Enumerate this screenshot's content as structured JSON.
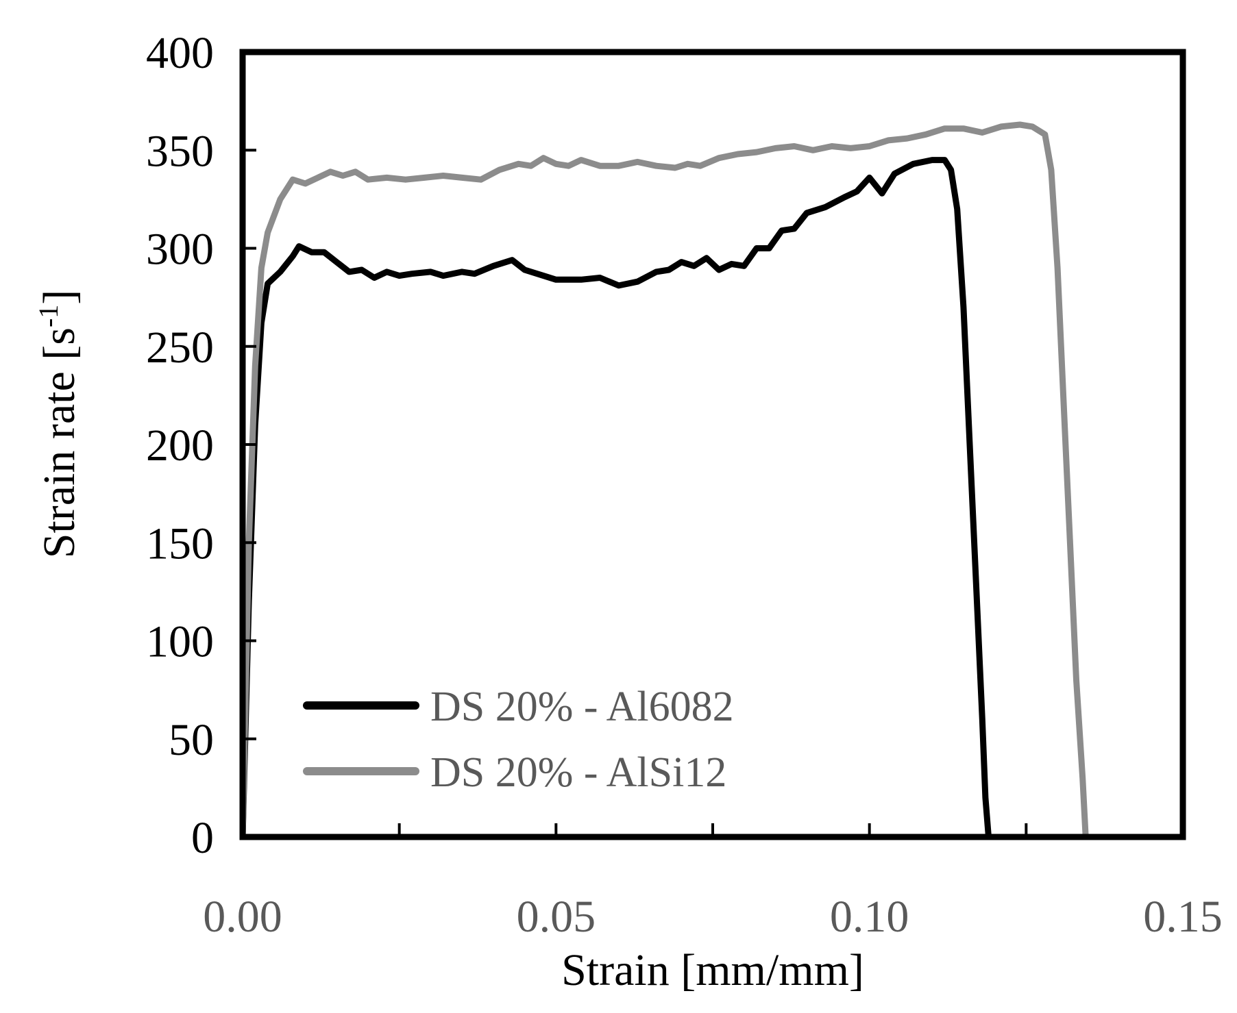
{
  "chart_data": {
    "type": "line",
    "title": "",
    "xlabel": "Strain [mm/mm]",
    "ylabel_main": "Strain rate [s",
    "ylabel_sup": "-1",
    "ylabel_close": "]",
    "xlim": [
      0,
      0.15
    ],
    "ylim": [
      0,
      400
    ],
    "x_ticks": [
      "0.00",
      "0.05",
      "0.10",
      "0.15"
    ],
    "y_ticks": [
      "0",
      "50",
      "100",
      "150",
      "200",
      "250",
      "300",
      "350",
      "400"
    ],
    "grid": false,
    "legend_position": "bottom-left",
    "series": [
      {
        "name": "DS 20% - Al6082",
        "color": "#000000",
        "points": [
          [
            0.0,
            0
          ],
          [
            0.001,
            120
          ],
          [
            0.002,
            210
          ],
          [
            0.003,
            262
          ],
          [
            0.004,
            282
          ],
          [
            0.006,
            288
          ],
          [
            0.008,
            296
          ],
          [
            0.009,
            301
          ],
          [
            0.011,
            298
          ],
          [
            0.013,
            298
          ],
          [
            0.015,
            293
          ],
          [
            0.017,
            288
          ],
          [
            0.019,
            289
          ],
          [
            0.021,
            285
          ],
          [
            0.023,
            288
          ],
          [
            0.025,
            286
          ],
          [
            0.027,
            287
          ],
          [
            0.03,
            288
          ],
          [
            0.032,
            286
          ],
          [
            0.035,
            288
          ],
          [
            0.037,
            287
          ],
          [
            0.04,
            291
          ],
          [
            0.043,
            294
          ],
          [
            0.045,
            289
          ],
          [
            0.048,
            286
          ],
          [
            0.05,
            284
          ],
          [
            0.054,
            284
          ],
          [
            0.057,
            285
          ],
          [
            0.06,
            281
          ],
          [
            0.063,
            283
          ],
          [
            0.066,
            288
          ],
          [
            0.068,
            289
          ],
          [
            0.07,
            293
          ],
          [
            0.072,
            291
          ],
          [
            0.074,
            295
          ],
          [
            0.076,
            289
          ],
          [
            0.078,
            292
          ],
          [
            0.08,
            291
          ],
          [
            0.082,
            300
          ],
          [
            0.084,
            300
          ],
          [
            0.086,
            309
          ],
          [
            0.088,
            310
          ],
          [
            0.09,
            318
          ],
          [
            0.093,
            321
          ],
          [
            0.096,
            326
          ],
          [
            0.098,
            329
          ],
          [
            0.1,
            336
          ],
          [
            0.102,
            328
          ],
          [
            0.104,
            338
          ],
          [
            0.107,
            343
          ],
          [
            0.11,
            345
          ],
          [
            0.112,
            345
          ],
          [
            0.113,
            340
          ],
          [
            0.114,
            320
          ],
          [
            0.115,
            270
          ],
          [
            0.116,
            200
          ],
          [
            0.117,
            130
          ],
          [
            0.118,
            60
          ],
          [
            0.1185,
            20
          ],
          [
            0.119,
            0
          ]
        ]
      },
      {
        "name": "DS 20% - AlSi12",
        "color": "#8c8c8c",
        "points": [
          [
            0.0,
            0
          ],
          [
            0.001,
            150
          ],
          [
            0.002,
            240
          ],
          [
            0.003,
            290
          ],
          [
            0.004,
            308
          ],
          [
            0.006,
            325
          ],
          [
            0.008,
            335
          ],
          [
            0.01,
            333
          ],
          [
            0.012,
            336
          ],
          [
            0.014,
            339
          ],
          [
            0.016,
            337
          ],
          [
            0.018,
            339
          ],
          [
            0.02,
            335
          ],
          [
            0.023,
            336
          ],
          [
            0.026,
            335
          ],
          [
            0.029,
            336
          ],
          [
            0.032,
            337
          ],
          [
            0.035,
            336
          ],
          [
            0.038,
            335
          ],
          [
            0.041,
            340
          ],
          [
            0.044,
            343
          ],
          [
            0.046,
            342
          ],
          [
            0.048,
            346
          ],
          [
            0.05,
            343
          ],
          [
            0.052,
            342
          ],
          [
            0.054,
            345
          ],
          [
            0.057,
            342
          ],
          [
            0.06,
            342
          ],
          [
            0.063,
            344
          ],
          [
            0.066,
            342
          ],
          [
            0.069,
            341
          ],
          [
            0.071,
            343
          ],
          [
            0.073,
            342
          ],
          [
            0.076,
            346
          ],
          [
            0.079,
            348
          ],
          [
            0.082,
            349
          ],
          [
            0.085,
            351
          ],
          [
            0.088,
            352
          ],
          [
            0.091,
            350
          ],
          [
            0.094,
            352
          ],
          [
            0.097,
            351
          ],
          [
            0.1,
            352
          ],
          [
            0.103,
            355
          ],
          [
            0.106,
            356
          ],
          [
            0.109,
            358
          ],
          [
            0.112,
            361
          ],
          [
            0.115,
            361
          ],
          [
            0.118,
            359
          ],
          [
            0.121,
            362
          ],
          [
            0.124,
            363
          ],
          [
            0.126,
            362
          ],
          [
            0.128,
            358
          ],
          [
            0.129,
            340
          ],
          [
            0.13,
            290
          ],
          [
            0.131,
            220
          ],
          [
            0.132,
            150
          ],
          [
            0.133,
            80
          ],
          [
            0.134,
            30
          ],
          [
            0.1345,
            0
          ]
        ]
      }
    ]
  }
}
